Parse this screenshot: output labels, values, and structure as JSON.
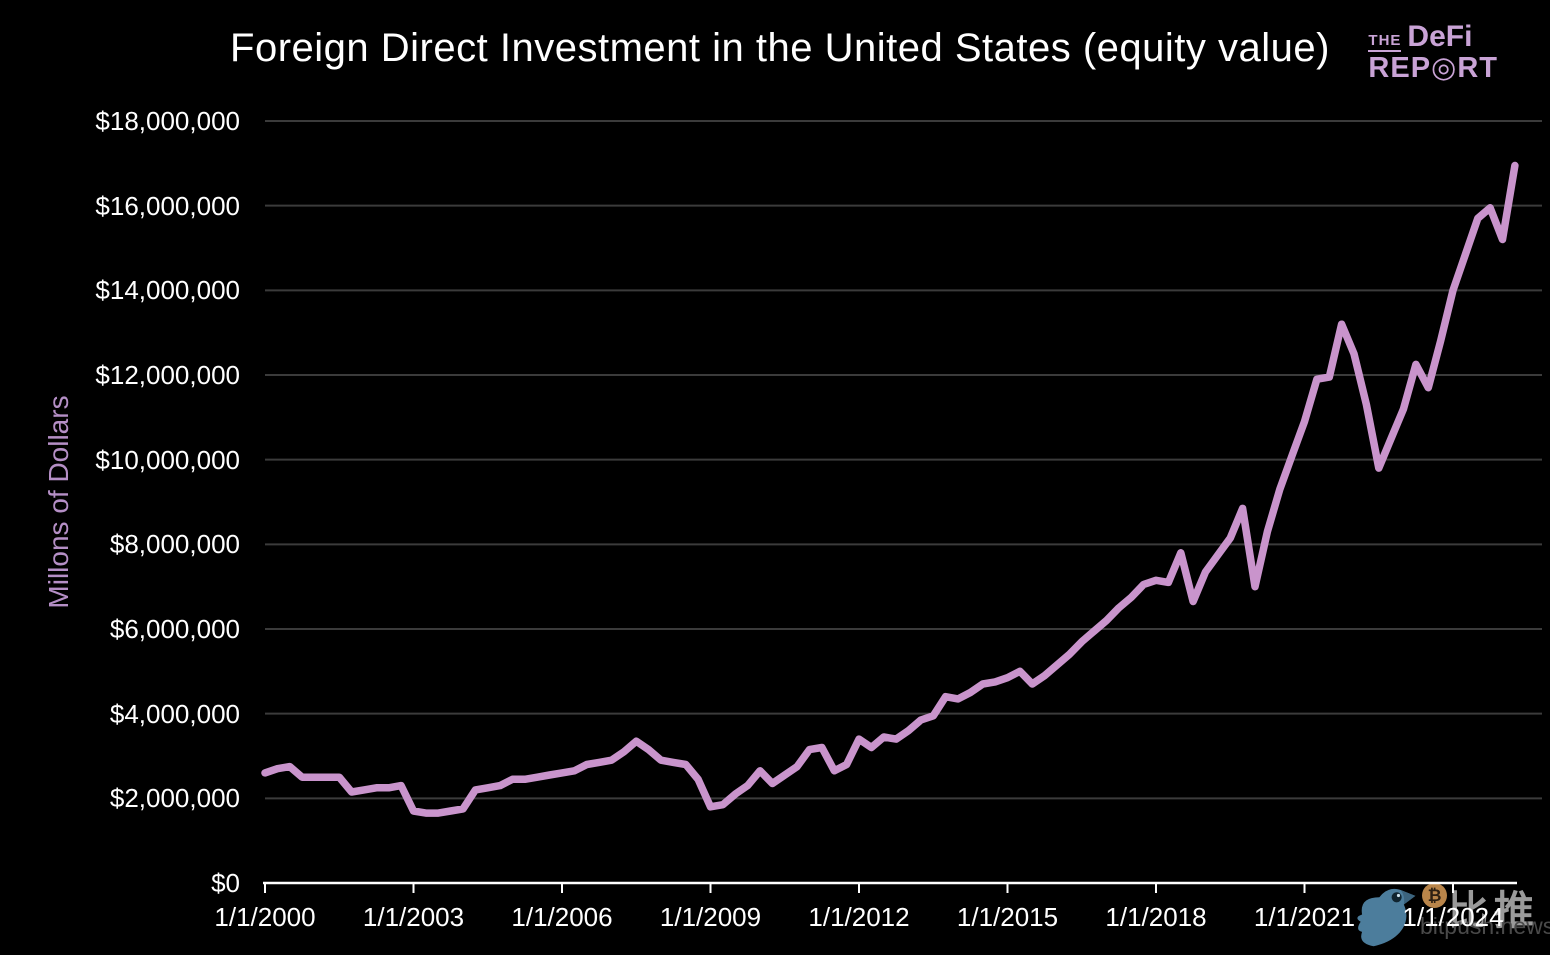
{
  "title": "Foreign Direct Investment in the United States (equity value)",
  "logo": {
    "line1_small": "THE",
    "line1_main": "DeFi",
    "line2": "REP◎RT"
  },
  "y_axis": {
    "title": "Millons of Dollars",
    "ticks": [
      "$18,000,000",
      "$16,000,000",
      "$14,000,000",
      "$12,000,000",
      "$10,000,000",
      "$8,000,000",
      "$6,000,000",
      "$4,000,000",
      "$2,000,000",
      "$0"
    ]
  },
  "x_axis": {
    "ticks": [
      "1/1/2000",
      "1/1/2003",
      "1/1/2006",
      "1/1/2009",
      "1/1/2012",
      "1/1/2015",
      "1/1/2018",
      "1/1/2021",
      "1/1/2024"
    ]
  },
  "watermark": {
    "bird_icon": "bitpush-bird-with-bitcoin",
    "coin_symbol": "₿",
    "cn_text": "比推",
    "en_text": "bitpush.news"
  },
  "colors": {
    "background": "#000000",
    "line": "#c994cc",
    "gridline": "#3b3b3b",
    "axis": "#ffffff",
    "y_title_purple": "#b58fc6",
    "logo_purple": "#c9a3d6",
    "bird_blue": "#4c7d9c",
    "coin_orange": "#b9854a",
    "watermark_gray": "#9a9a9a",
    "watermark_dark_gray": "#4a4a4a"
  },
  "chart_data": {
    "type": "line",
    "title": "Foreign Direct Investment in the United States (equity value)",
    "xlabel": "",
    "ylabel": "Millons of Dollars",
    "units": "millions of USD",
    "frequency": "quarterly",
    "x_start_year": 2000,
    "x_step_years": 0.25,
    "x_tick_labels": [
      "1/1/2000",
      "1/1/2003",
      "1/1/2006",
      "1/1/2009",
      "1/1/2012",
      "1/1/2015",
      "1/1/2018",
      "1/1/2021",
      "1/1/2024"
    ],
    "y_tick_values": [
      0,
      2000000,
      4000000,
      6000000,
      8000000,
      10000000,
      12000000,
      14000000,
      16000000,
      18000000
    ],
    "ylim": [
      0,
      18000000
    ],
    "grid": "horizontal",
    "legend": "none",
    "series": [
      {
        "name": "FDI in the United States (equity value)",
        "color": "#c994cc",
        "values": [
          2600000,
          2700000,
          2750000,
          2500000,
          2500000,
          2500000,
          2500000,
          2150000,
          2200000,
          2250000,
          2250000,
          2300000,
          1700000,
          1650000,
          1650000,
          1700000,
          1750000,
          2200000,
          2250000,
          2300000,
          2450000,
          2450000,
          2500000,
          2550000,
          2600000,
          2650000,
          2800000,
          2850000,
          2900000,
          3100000,
          3350000,
          3150000,
          2900000,
          2850000,
          2800000,
          2450000,
          1800000,
          1850000,
          2100000,
          2300000,
          2650000,
          2350000,
          2550000,
          2750000,
          3150000,
          3200000,
          2650000,
          2800000,
          3400000,
          3200000,
          3450000,
          3400000,
          3600000,
          3850000,
          3950000,
          4400000,
          4350000,
          4500000,
          4700000,
          4750000,
          4850000,
          5000000,
          4700000,
          4900000,
          5150000,
          5400000,
          5700000,
          5950000,
          6200000,
          6500000,
          6750000,
          7050000,
          7150000,
          7100000,
          7800000,
          6650000,
          7350000,
          7750000,
          8150000,
          8850000,
          7000000,
          8300000,
          9300000,
          10100000,
          10900000,
          11900000,
          11950000,
          13200000,
          12500000,
          11300000,
          9800000,
          10500000,
          11200000,
          12250000,
          11700000,
          12800000,
          14000000,
          14850000,
          15700000,
          15950000,
          15200000,
          16950000
        ]
      }
    ]
  }
}
